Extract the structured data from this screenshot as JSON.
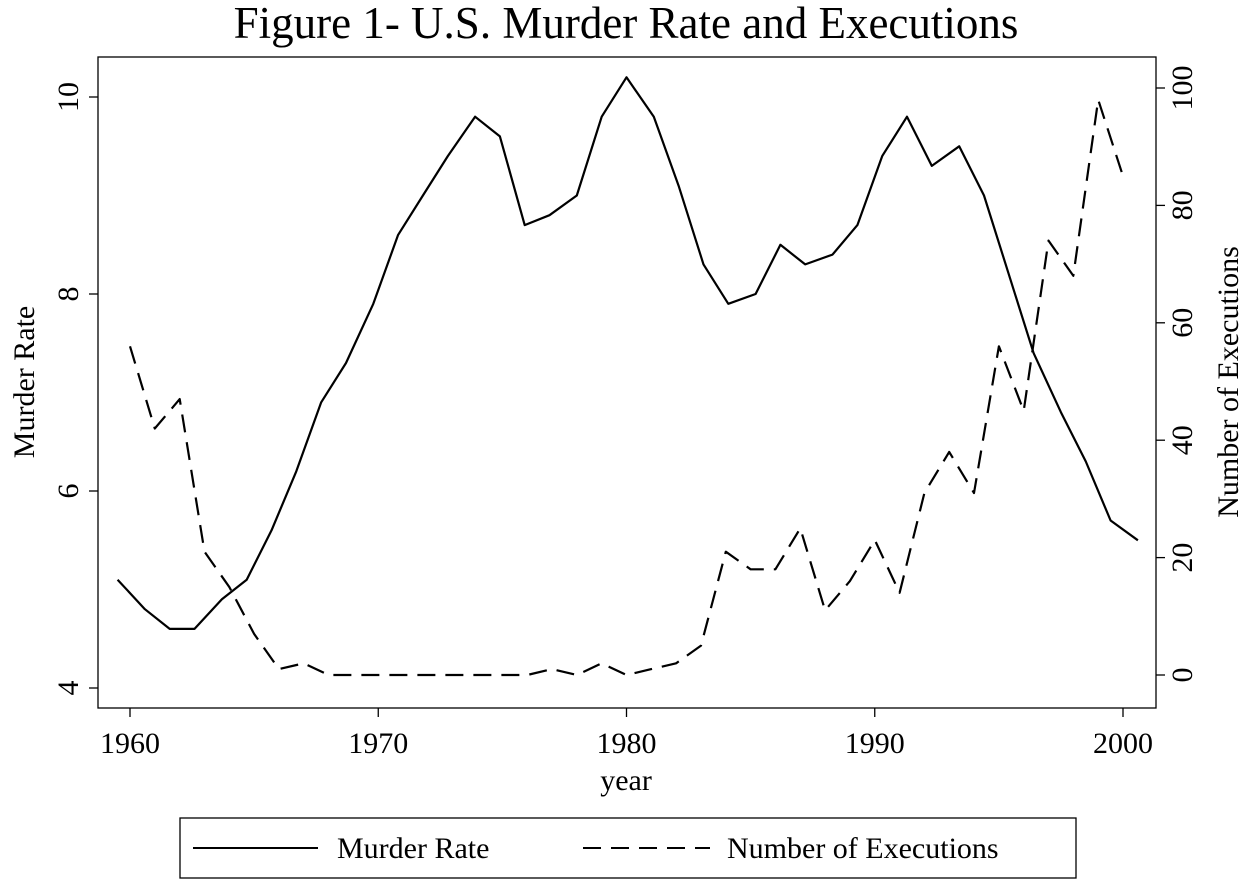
{
  "chart_data": {
    "type": "line",
    "title": "Figure 1-  U.S. Murder Rate and Executions",
    "xlabel": "year",
    "ylabel_left": "Murder Rate",
    "ylabel_right": "Number of Executions",
    "xlim": [
      1959.5,
      2001
    ],
    "ylim_left": [
      3.8,
      10.4
    ],
    "ylim_right": [
      -5,
      105
    ],
    "x_ticks": [
      1960,
      1970,
      1980,
      1990,
      2000
    ],
    "y_left_ticks": [
      4,
      6,
      8,
      10
    ],
    "y_right_ticks": [
      0,
      20,
      40,
      60,
      80,
      100
    ],
    "grid": false,
    "legend_position": "bottom",
    "series": [
      {
        "name": "Murder Rate",
        "axis": "left",
        "style": "solid",
        "color": "#000000",
        "x": [
          1959.5,
          1960.6,
          1961.6,
          1962.6,
          1963.7,
          1964.7,
          1965.7,
          1966.7,
          1967.7,
          1968.7,
          1969.8,
          1970.8,
          1971.8,
          1972.8,
          1973.9,
          1974.9,
          1975.9,
          1976.9,
          1978.0,
          1979.0,
          1980.0,
          1981.1,
          1982.1,
          1983.1,
          1984.1,
          1985.2,
          1986.2,
          1987.2,
          1988.3,
          1989.3,
          1990.3,
          1991.3,
          1992.3,
          1993.4,
          1994.4,
          1995.4,
          1996.4,
          1997.5,
          1998.5,
          1999.5,
          2000.6
        ],
        "values": [
          5.1,
          4.8,
          4.6,
          4.6,
          4.9,
          5.1,
          5.6,
          6.2,
          6.9,
          7.3,
          7.9,
          8.6,
          9.0,
          9.4,
          9.8,
          9.6,
          8.7,
          8.8,
          9.0,
          9.8,
          10.2,
          9.8,
          9.1,
          8.3,
          7.9,
          8.0,
          8.5,
          8.3,
          8.4,
          8.7,
          9.4,
          9.8,
          9.3,
          9.5,
          9.0,
          8.2,
          7.4,
          6.8,
          6.3,
          5.7,
          5.5
        ]
      },
      {
        "name": "Number of Executions",
        "axis": "right",
        "style": "dashed",
        "color": "#000000",
        "x": [
          1960,
          1961,
          1962,
          1963,
          1964,
          1965,
          1966,
          1967,
          1968,
          1969,
          1970,
          1971,
          1972,
          1973,
          1974,
          1975,
          1976,
          1977,
          1978,
          1979,
          1980,
          1981,
          1982,
          1983,
          1984,
          1985,
          1986,
          1987,
          1988,
          1989,
          1990,
          1991,
          1992,
          1993,
          1994,
          1995,
          1996,
          1997,
          1998,
          1999,
          2000
        ],
        "values": [
          56,
          42,
          47,
          21,
          15,
          7,
          1,
          2,
          0,
          0,
          0,
          0,
          0,
          0,
          0,
          0,
          0,
          1,
          0,
          2,
          0,
          1,
          2,
          5,
          21,
          18,
          18,
          25,
          11,
          16,
          23,
          14,
          31,
          38,
          31,
          56,
          45,
          74,
          68,
          98,
          85
        ]
      }
    ]
  }
}
